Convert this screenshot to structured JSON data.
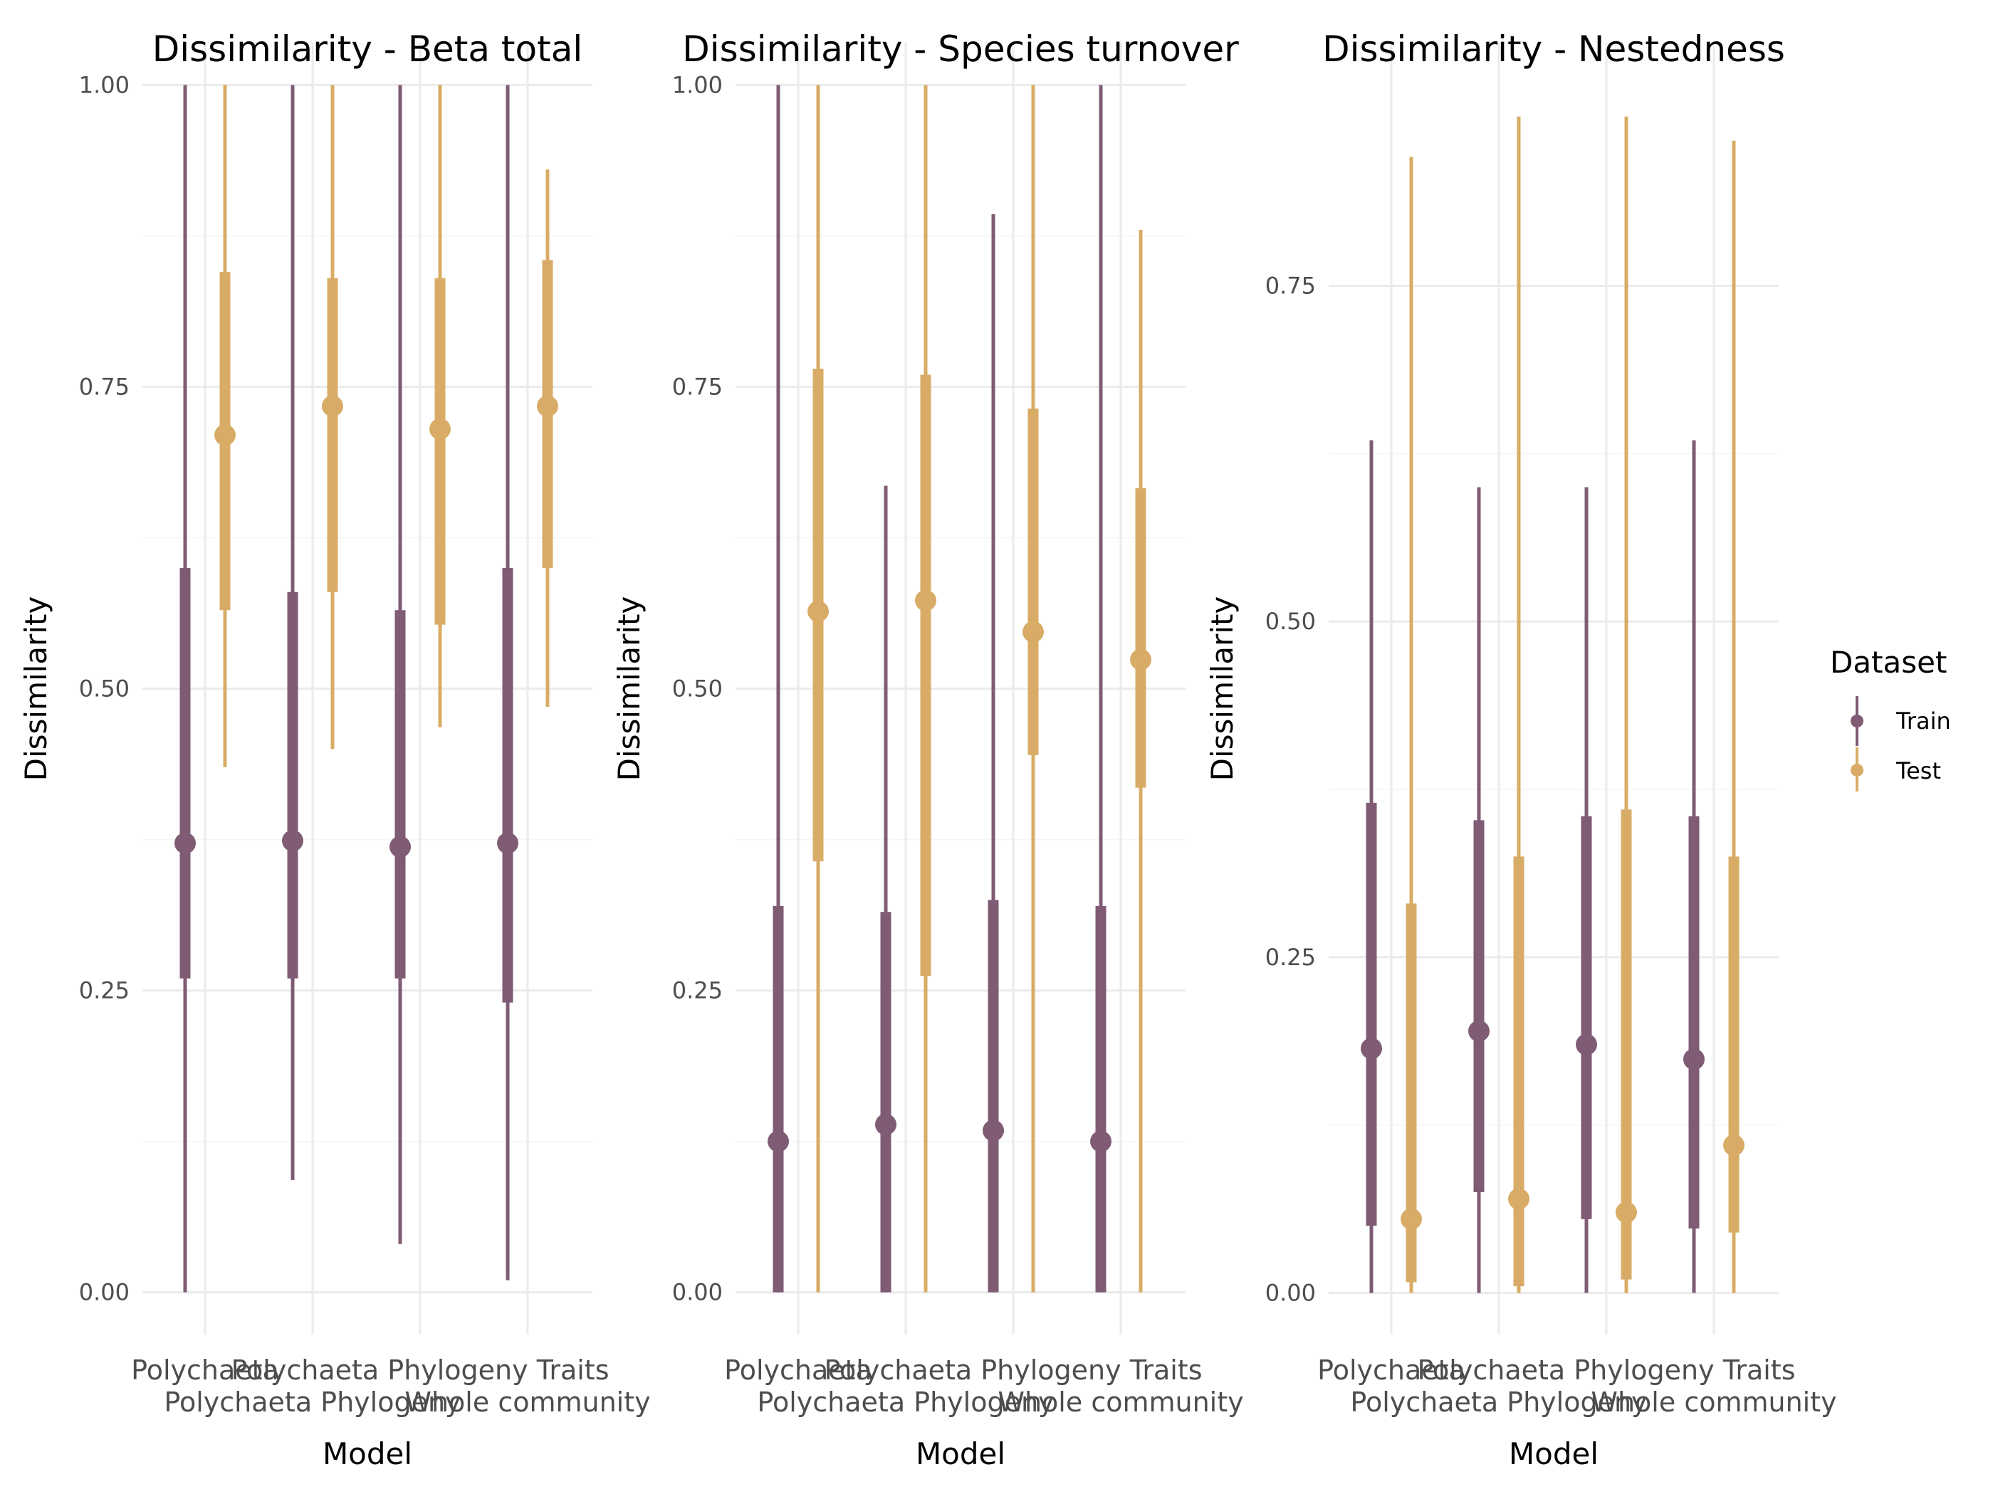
{
  "legend": {
    "title": "Dataset",
    "entries": [
      {
        "name": "Train",
        "color": "#7f5b74"
      },
      {
        "name": "Test",
        "color": "#d8ac66"
      }
    ]
  },
  "chart_data": [
    {
      "type": "interval",
      "title": "Dissimilarity - Beta total",
      "xlabel": "Model",
      "ylabel": "Dissimilarity",
      "categories": [
        "Polychaeta",
        "Polychaeta Phylogeny",
        "Polychaeta Phylogeny Traits",
        "Whole community"
      ],
      "ylim": [
        -0.035,
        1.035
      ],
      "yticks": [
        0,
        0.25,
        0.5,
        0.75,
        1
      ],
      "ytick_labels": [
        "0.00",
        "0.25",
        "0.50",
        "0.75",
        "1.00"
      ],
      "grid": true,
      "series": [
        {
          "name": "Train",
          "color": "#7f5b74",
          "point": [
            0.372,
            0.374,
            0.369,
            0.372
          ],
          "inner": [
            [
              0.26,
              0.6
            ],
            [
              0.26,
              0.58
            ],
            [
              0.26,
              0.565
            ],
            [
              0.24,
              0.6
            ]
          ],
          "outer": [
            [
              0.0,
              1.0
            ],
            [
              0.093,
              1.0
            ],
            [
              0.04,
              1.0
            ],
            [
              0.01,
              1.0
            ]
          ]
        },
        {
          "name": "Test",
          "color": "#d8ac66",
          "point": [
            0.71,
            0.734,
            0.715,
            0.734
          ],
          "inner": [
            [
              0.565,
              0.845
            ],
            [
              0.58,
              0.84
            ],
            [
              0.553,
              0.84
            ],
            [
              0.6,
              0.855
            ]
          ],
          "outer": [
            [
              0.435,
              1.0
            ],
            [
              0.45,
              1.0
            ],
            [
              0.468,
              1.0
            ],
            [
              0.485,
              0.93
            ]
          ]
        }
      ]
    },
    {
      "type": "interval",
      "title": "Dissimilarity - Species turnover",
      "xlabel": "Model",
      "ylabel": "Dissimilarity",
      "categories": [
        "Polychaeta",
        "Polychaeta Phylogeny",
        "Polychaeta Phylogeny Traits",
        "Whole community"
      ],
      "ylim": [
        -0.035,
        1.035
      ],
      "yticks": [
        0,
        0.25,
        0.5,
        0.75,
        1
      ],
      "ytick_labels": [
        "0.00",
        "0.25",
        "0.50",
        "0.75",
        "1.00"
      ],
      "grid": true,
      "series": [
        {
          "name": "Train",
          "color": "#7f5b74",
          "point": [
            0.125,
            0.139,
            0.134,
            0.125
          ],
          "inner": [
            [
              0.0,
              0.32
            ],
            [
              0.0,
              0.315
            ],
            [
              0.0,
              0.325
            ],
            [
              0.0,
              0.32
            ]
          ],
          "outer": [
            [
              0.0,
              1.0
            ],
            [
              0.0,
              0.668
            ],
            [
              0.0,
              0.893
            ],
            [
              0.0,
              1.0
            ]
          ]
        },
        {
          "name": "Test",
          "color": "#d8ac66",
          "point": [
            0.564,
            0.573,
            0.547,
            0.524
          ],
          "inner": [
            [
              0.357,
              0.765
            ],
            [
              0.262,
              0.76
            ],
            [
              0.445,
              0.732
            ],
            [
              0.418,
              0.666
            ]
          ],
          "outer": [
            [
              0.0,
              1.0
            ],
            [
              0.0,
              1.0
            ],
            [
              0.0,
              1.0
            ],
            [
              0.0,
              0.88
            ]
          ]
        }
      ]
    },
    {
      "type": "interval",
      "title": "Dissimilarity - Nestedness",
      "xlabel": "Model",
      "ylabel": "Dissimilarity",
      "categories": [
        "Polychaeta",
        "Polychaeta Phylogeny",
        "Polychaeta Phylogeny Traits",
        "Whole community"
      ],
      "ylim": [
        -0.031,
        0.931
      ],
      "yticks": [
        0,
        0.25,
        0.5,
        0.75
      ],
      "ytick_labels": [
        "0.00",
        "0.25",
        "0.50",
        "0.75"
      ],
      "grid": true,
      "series": [
        {
          "name": "Train",
          "color": "#7f5b74",
          "point": [
            0.182,
            0.195,
            0.185,
            0.174
          ],
          "inner": [
            [
              0.05,
              0.365
            ],
            [
              0.075,
              0.352
            ],
            [
              0.055,
              0.355
            ],
            [
              0.048,
              0.355
            ]
          ],
          "outer": [
            [
              0.0,
              0.635
            ],
            [
              0.0,
              0.6
            ],
            [
              0.0,
              0.6
            ],
            [
              0.0,
              0.635
            ]
          ]
        },
        {
          "name": "Test",
          "color": "#d8ac66",
          "point": [
            0.055,
            0.07,
            0.06,
            0.11
          ],
          "inner": [
            [
              0.008,
              0.29
            ],
            [
              0.005,
              0.325
            ],
            [
              0.01,
              0.36
            ],
            [
              0.045,
              0.325
            ]
          ],
          "outer": [
            [
              0.0,
              0.846
            ],
            [
              0.0,
              0.876
            ],
            [
              0.0,
              0.876
            ],
            [
              0.0,
              0.858
            ]
          ]
        }
      ]
    }
  ]
}
